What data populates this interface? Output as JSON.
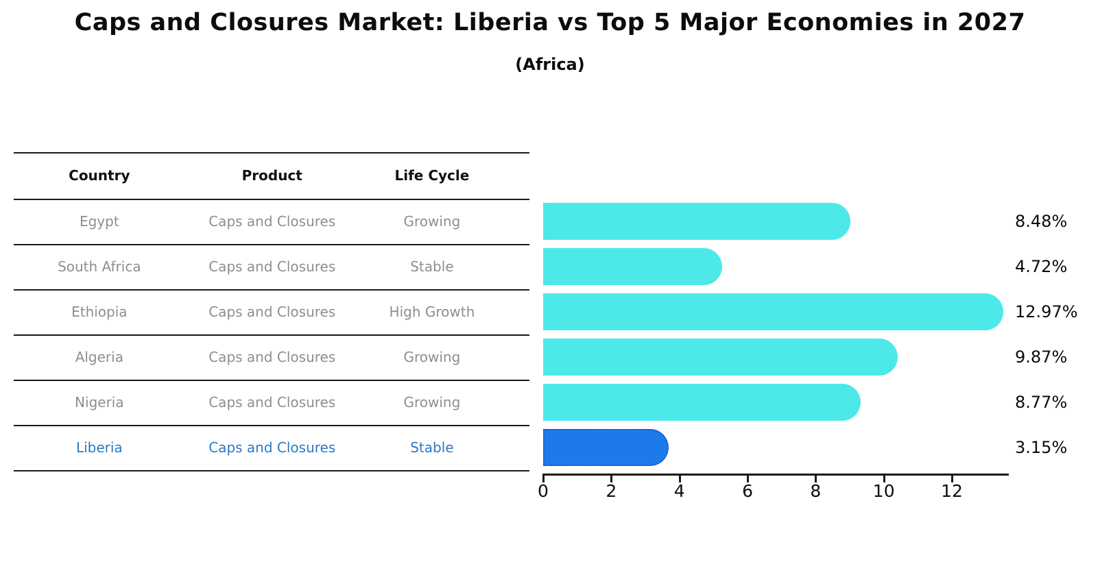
{
  "chart_data": {
    "type": "bar",
    "orientation": "horizontal",
    "title": "Caps and Closures Market: Liberia vs Top 5 Major Economies in 2027",
    "subtitle": "(Africa)",
    "categories": [
      "Egypt",
      "South Africa",
      "Ethiopia",
      "Algeria",
      "Nigeria",
      "Liberia"
    ],
    "values": [
      8.48,
      4.72,
      12.97,
      9.87,
      8.77,
      3.15
    ],
    "value_labels": [
      "8.48%",
      "4.72%",
      "12.97%",
      "9.87%",
      "8.77%",
      "3.15%"
    ],
    "xticks": [
      0,
      2,
      4,
      6,
      8,
      10,
      12
    ],
    "xlim": [
      0,
      13.65
    ],
    "xlabel": "",
    "ylabel": "",
    "grid": false,
    "legend": false,
    "bar_color": "#4de8e8",
    "highlight_index": 5,
    "highlight_color": "#1e7aeb",
    "highlight_border_color": "#1157cf",
    "highlight_text_color": "#2a7ac6",
    "text_color": "#8e8e8e"
  },
  "table": {
    "headers": [
      "Country",
      "Product",
      "Life Cycle"
    ],
    "rows": [
      {
        "country": "Egypt",
        "product": "Caps and Closures",
        "life_cycle": "Growing",
        "highlighted": false
      },
      {
        "country": "South Africa",
        "product": "Caps and Closures",
        "life_cycle": "Stable",
        "highlighted": false
      },
      {
        "country": "Ethiopia",
        "product": "Caps and Closures",
        "life_cycle": "High Growth",
        "highlighted": false
      },
      {
        "country": "Algeria",
        "product": "Caps and Closures",
        "life_cycle": "Growing",
        "highlighted": false
      },
      {
        "country": "Nigeria",
        "product": "Caps and Closures",
        "life_cycle": "Growing",
        "highlighted": false
      },
      {
        "country": "Liberia",
        "product": "Caps and Closures",
        "life_cycle": "Stable",
        "highlighted": true
      }
    ]
  }
}
